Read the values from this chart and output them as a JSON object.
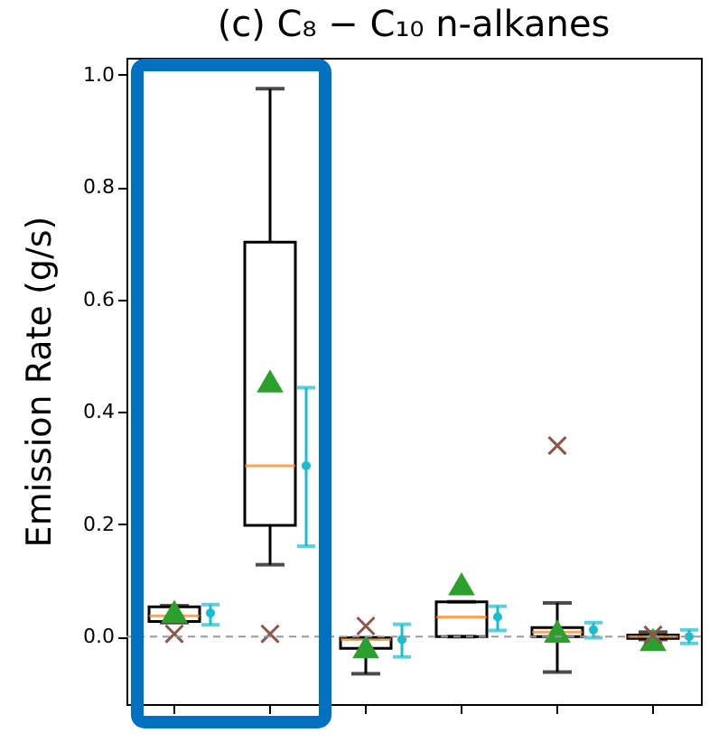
{
  "chart_data": {
    "type": "box",
    "title": "(c) C₈ − C₁₀ n-alkanes",
    "ylabel": "Emission Rate (g/s)",
    "categories": [
      null,
      null,
      null,
      null,
      null,
      null
    ],
    "ylim": [
      -0.12,
      1.03
    ],
    "yticks": [
      {
        "value": 0,
        "label": "0.0"
      },
      {
        "value": 0.2,
        "label": "0.2"
      },
      {
        "value": 0.4,
        "label": "0.4"
      },
      {
        "value": 0.6,
        "label": "0.6"
      },
      {
        "value": 0.8,
        "label": "0.8"
      },
      {
        "value": 1,
        "label": "1.0"
      }
    ],
    "tick_labels": "y",
    "grid": false,
    "series": [
      {
        "type": "box",
        "color": "#000000",
        "boxes": [
          {
            "low": 0.025,
            "q1": 0.027,
            "median": 0.037,
            "q3": 0.053,
            "high": 0.055,
            "mean": 0.045
          },
          {
            "low": 0.128,
            "q1": 0.198,
            "median": 0.304,
            "q3": 0.702,
            "high": 0.975,
            "mean": 0.455
          },
          {
            "low": -0.066,
            "q1": -0.021,
            "median": -0.005,
            "q3": -0.002,
            "high": -0.002,
            "mean": -0.018
          },
          {
            "low": 0,
            "q1": 0,
            "median": 0.035,
            "q3": 0.062,
            "high": 0.062,
            "mean": 0.094
          },
          {
            "low": -0.063,
            "q1": 0,
            "median": 0.008,
            "q3": 0.016,
            "high": 0.06,
            "mean": 0.01
          },
          {
            "low": -0.005,
            "q1": -0.003,
            "median": 0,
            "q3": 0.003,
            "high": 0.008,
            "mean": -0.005
          }
        ]
      },
      {
        "type": "scatter",
        "marker": "cross",
        "color": "#8c564b",
        "values": [
          0.005,
          0.005,
          0.019,
          null,
          0.34,
          0.003
        ]
      },
      {
        "type": "scatter",
        "marker": "circle",
        "color": "#17becf",
        "values": [
          0.042,
          0.304,
          -0.005,
          0.035,
          0.012,
          0.0
        ],
        "errors": [
          [
            0.021,
            0.057
          ],
          [
            0.161,
            0.443
          ],
          [
            -0.036,
            0.022
          ],
          [
            0.011,
            0.054
          ],
          [
            -0.002,
            0.025
          ],
          [
            -0.012,
            0.012
          ]
        ]
      }
    ],
    "ref_lines": [
      {
        "axis": "y",
        "value": 0,
        "color": "#999999",
        "line_style": "dashed"
      }
    ]
  }
}
